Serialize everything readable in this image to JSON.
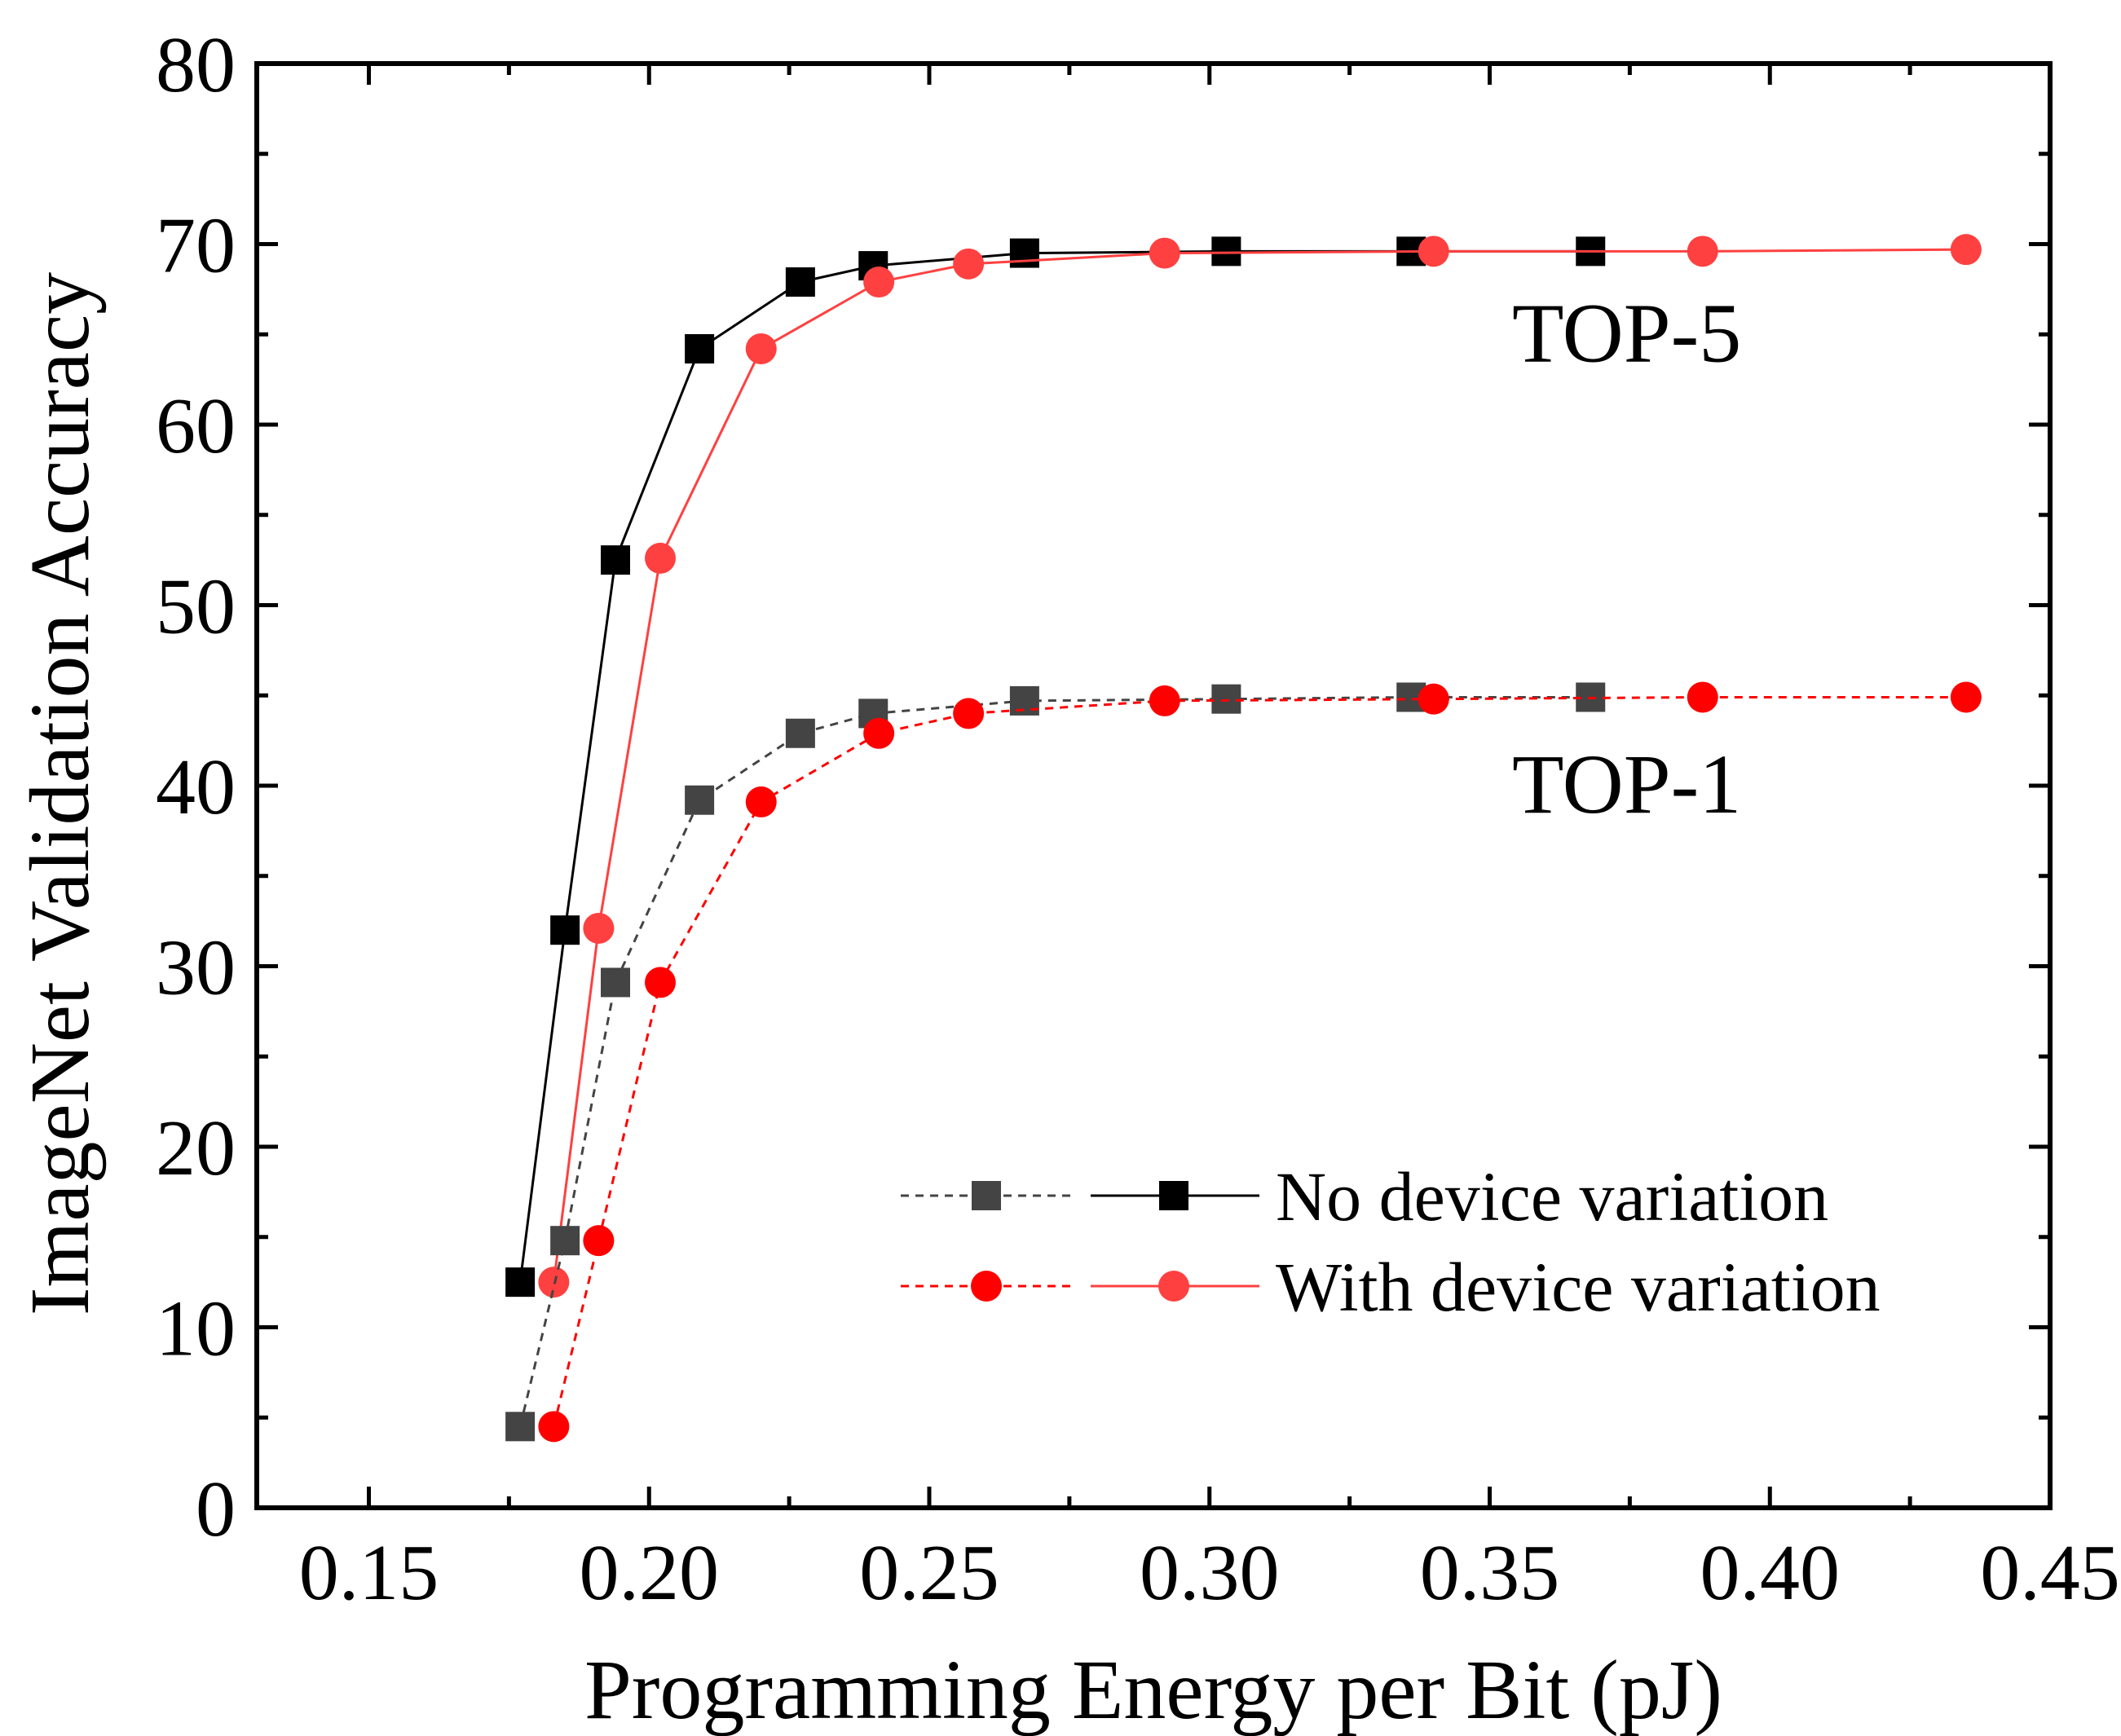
{
  "chart_data": {
    "type": "line",
    "xlabel": "Programming Energy per Bit (pJ)",
    "ylabel": "ImageNet Validation Accuracy",
    "xlim": [
      0.13,
      0.45
    ],
    "ylim": [
      0,
      80
    ],
    "x_ticks": [
      {
        "value": 0.15,
        "label": "0.15"
      },
      {
        "value": 0.2,
        "label": "0.20"
      },
      {
        "value": 0.25,
        "label": "0.25"
      },
      {
        "value": 0.3,
        "label": "0.30"
      },
      {
        "value": 0.35,
        "label": "0.35"
      },
      {
        "value": 0.4,
        "label": "0.40"
      },
      {
        "value": 0.45,
        "label": "0.45"
      }
    ],
    "y_ticks": [
      {
        "value": 0,
        "label": "0"
      },
      {
        "value": 10,
        "label": "10"
      },
      {
        "value": 20,
        "label": "20"
      },
      {
        "value": 30,
        "label": "30"
      },
      {
        "value": 40,
        "label": "40"
      },
      {
        "value": 50,
        "label": "50"
      },
      {
        "value": 60,
        "label": "60"
      },
      {
        "value": 70,
        "label": "70"
      },
      {
        "value": 80,
        "label": "80"
      }
    ],
    "annotations": [
      {
        "text": "TOP-5",
        "x": 0.354,
        "y": 63.5
      },
      {
        "text": "TOP-1",
        "x": 0.354,
        "y": 38.5
      }
    ],
    "legend": {
      "placement": "bottom-right",
      "entries": [
        {
          "label": "No device variation",
          "dashed_color": "#444444",
          "solid_color": "#000000",
          "marker": "square"
        },
        {
          "label": "With device variation",
          "dashed_color": "#ff0000",
          "solid_color": "#ff4040",
          "marker": "circle"
        }
      ]
    },
    "series": [
      {
        "name": "No device variation TOP-5",
        "color": "#000000",
        "dash": "solid",
        "marker": "square",
        "points": [
          [
            0.177,
            12.5
          ],
          [
            0.185,
            32.0
          ],
          [
            0.194,
            52.5
          ],
          [
            0.209,
            64.2
          ],
          [
            0.227,
            67.9
          ],
          [
            0.24,
            68.8
          ],
          [
            0.267,
            69.5
          ],
          [
            0.303,
            69.6
          ],
          [
            0.336,
            69.6
          ],
          [
            0.368,
            69.6
          ]
        ]
      },
      {
        "name": "With device variation TOP-5",
        "color": "#ff4040",
        "dash": "solid",
        "marker": "circle",
        "points": [
          [
            0.183,
            12.5
          ],
          [
            0.191,
            32.1
          ],
          [
            0.202,
            52.6
          ],
          [
            0.22,
            64.2
          ],
          [
            0.241,
            67.9
          ],
          [
            0.257,
            68.9
          ],
          [
            0.292,
            69.5
          ],
          [
            0.34,
            69.6
          ],
          [
            0.388,
            69.6
          ],
          [
            0.435,
            69.7
          ]
        ]
      },
      {
        "name": "No device variation TOP-1",
        "color": "#444444",
        "dash": "dashed",
        "marker": "square",
        "points": [
          [
            0.177,
            4.5
          ],
          [
            0.185,
            14.8
          ],
          [
            0.194,
            29.1
          ],
          [
            0.209,
            39.2
          ],
          [
            0.227,
            42.9
          ],
          [
            0.24,
            44.0
          ],
          [
            0.267,
            44.7
          ],
          [
            0.303,
            44.8
          ],
          [
            0.336,
            44.9
          ],
          [
            0.368,
            44.9
          ]
        ]
      },
      {
        "name": "With device variation TOP-1",
        "color": "#ff0000",
        "dash": "dashed",
        "marker": "circle",
        "points": [
          [
            0.183,
            4.5
          ],
          [
            0.191,
            14.8
          ],
          [
            0.202,
            29.1
          ],
          [
            0.22,
            39.1
          ],
          [
            0.241,
            42.9
          ],
          [
            0.257,
            44.0
          ],
          [
            0.292,
            44.7
          ],
          [
            0.34,
            44.8
          ],
          [
            0.388,
            44.9
          ],
          [
            0.435,
            44.9
          ]
        ]
      }
    ]
  }
}
